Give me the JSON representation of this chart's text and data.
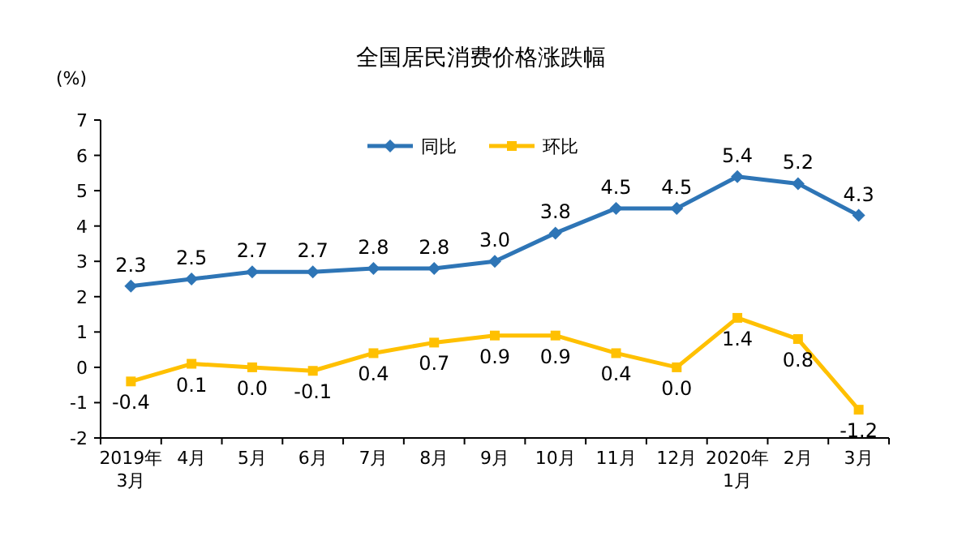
{
  "chart_data": {
    "type": "line",
    "title": "全国居民消费价格涨跌幅",
    "ylabel": "(%)",
    "categories": [
      "2019年\n3月",
      "4月",
      "5月",
      "6月",
      "7月",
      "8月",
      "9月",
      "10月",
      "11月",
      "12月",
      "2020年\n1月",
      "2月",
      "3月"
    ],
    "series": [
      {
        "name": "同比",
        "color": "#2e75b6",
        "marker": "diamond",
        "values": [
          2.3,
          2.5,
          2.7,
          2.7,
          2.8,
          2.8,
          3.0,
          3.8,
          4.5,
          4.5,
          5.4,
          5.2,
          4.3
        ],
        "value_labels": [
          "2.3",
          "2.5",
          "2.7",
          "2.7",
          "2.8",
          "2.8",
          "3.0",
          "3.8",
          "4.5",
          "4.5",
          "5.4",
          "5.2",
          "4.3"
        ]
      },
      {
        "name": "环比",
        "color": "#ffc000",
        "marker": "square",
        "values": [
          -0.4,
          0.1,
          0.0,
          -0.1,
          0.4,
          0.7,
          0.9,
          0.9,
          0.4,
          0.0,
          1.4,
          0.8,
          -1.2
        ],
        "value_labels": [
          "-0.4",
          "0.1",
          "0.0",
          "-0.1",
          "0.4",
          "0.7",
          "0.9",
          "0.9",
          "0.4",
          "0.0",
          "1.4",
          "0.8",
          "-1.2"
        ]
      }
    ],
    "ylim": [
      -2,
      7
    ],
    "yticks": [
      -2,
      -1,
      0,
      1,
      2,
      3,
      4,
      5,
      6,
      7
    ],
    "legend": "top",
    "grid": false
  }
}
